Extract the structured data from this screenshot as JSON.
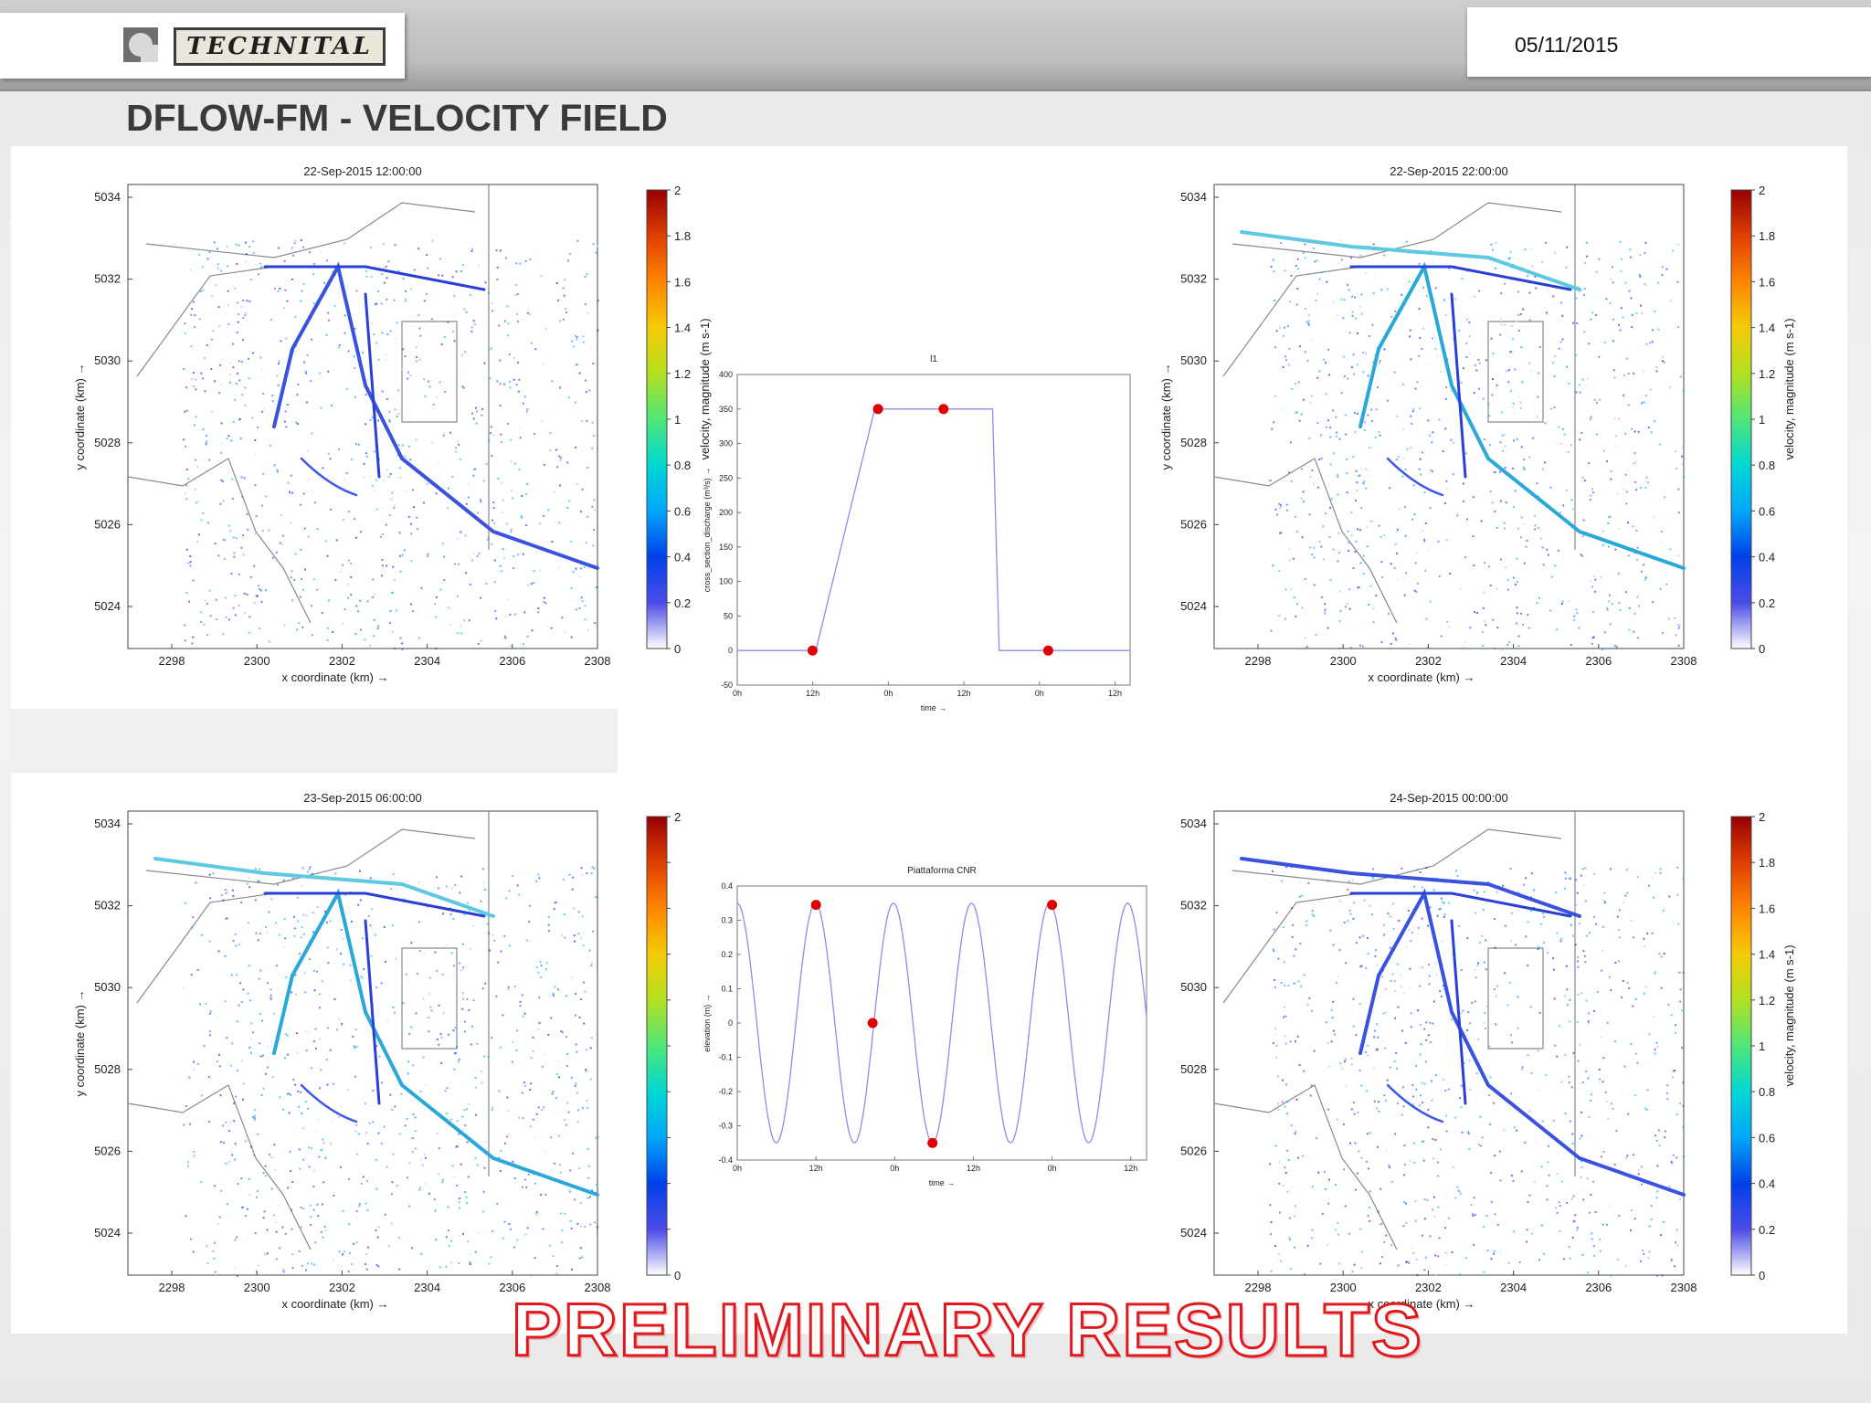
{
  "header": {
    "logo_text": "TECHNITAL",
    "date": "05/11/2015",
    "title": "DFLOW-FM - VELOCITY FIELD"
  },
  "watermark": "PRELIMINARY RESULTS",
  "colors": {
    "accent_red": "#e0191f",
    "flow_blue": "#2a3fd6",
    "series": "#8c8cf0",
    "marker": "#e00000"
  },
  "chart_data": [
    {
      "type": "heatmap",
      "title": "22-Sep-2015 12:00:00",
      "xlabel": "x coordinate (km) →",
      "ylabel": "y coordinate (km) →",
      "xticks": [
        "2298",
        "2300",
        "2302",
        "2304",
        "2306",
        "2308"
      ],
      "yticks": [
        "5034",
        "5032",
        "5030",
        "5028",
        "5026",
        "5024"
      ],
      "colorbar_label": "velocity, magnitude (m s-1)",
      "colorbar_ticks": [
        "2",
        "1.8",
        "1.6",
        "1.4",
        "1.2",
        "1",
        "0.8",
        "0.6",
        "0.4",
        "0.2",
        "0"
      ],
      "range": [
        0,
        2
      ]
    },
    {
      "type": "heatmap",
      "title": "22-Sep-2015 22:00:00",
      "xlabel": "x coordinate (km) →",
      "ylabel": "y coordinate (km) →",
      "xticks": [
        "2298",
        "2300",
        "2302",
        "2304",
        "2306",
        "2308"
      ],
      "yticks": [
        "5034",
        "5032",
        "5030",
        "5028",
        "5026",
        "5024"
      ],
      "colorbar_label": "velocity, magnitude (m s-1)",
      "colorbar_ticks": [
        "2",
        "1.8",
        "1.6",
        "1.4",
        "1.2",
        "1",
        "0.8",
        "0.6",
        "0.4",
        "0.2",
        "0"
      ],
      "range": [
        0,
        2
      ]
    },
    {
      "type": "heatmap",
      "title": "23-Sep-2015 06:00:00",
      "xlabel": "x coordinate (km) →",
      "ylabel": "y coordinate (km) →",
      "xticks": [
        "2298",
        "2300",
        "2302",
        "2304",
        "2306",
        "2308"
      ],
      "yticks": [
        "5034",
        "5032",
        "5030",
        "5028",
        "5026",
        "5024"
      ],
      "colorbar_label": "",
      "colorbar_ticks": [
        "2",
        "",
        "",
        "",
        "",
        "",
        "",
        "",
        "",
        "",
        "0"
      ],
      "range": [
        0,
        2
      ]
    },
    {
      "type": "heatmap",
      "title": "24-Sep-2015 00:00:00",
      "xlabel": "x coordinate (km) →",
      "ylabel": "",
      "xticks": [
        "2298",
        "2300",
        "2302",
        "2304",
        "2306",
        "2308"
      ],
      "yticks": [
        "5034",
        "5032",
        "5030",
        "5028",
        "5026",
        "5024"
      ],
      "colorbar_label": "velocity, magnitude (m s-1)",
      "colorbar_ticks": [
        "2",
        "1.8",
        "1.6",
        "1.4",
        "1.2",
        "1",
        "0.8",
        "0.6",
        "0.4",
        "0.2",
        "0"
      ],
      "range": [
        0,
        2
      ]
    },
    {
      "type": "line",
      "title": "l1",
      "xlabel": "time →",
      "ylabel": "cross_section_discharge (m³/s) →",
      "xticks": [
        "0h",
        "12h",
        "0h",
        "12h",
        "0h",
        "12h"
      ],
      "ylim": [
        -50,
        400
      ],
      "yticks": [
        -50,
        0,
        50,
        100,
        150,
        200,
        250,
        300,
        350,
        400
      ],
      "xlim": [
        0,
        60
      ],
      "series": [
        {
          "x": [
            0,
            11,
            12,
            21,
            30,
            39,
            40,
            60
          ],
          "y": [
            0,
            0,
            0,
            350,
            350,
            350,
            0,
            0
          ]
        }
      ],
      "markers": [
        {
          "x": 11.5,
          "y": 0
        },
        {
          "x": 21.5,
          "y": 350
        },
        {
          "x": 31.5,
          "y": 350
        },
        {
          "x": 47.5,
          "y": 0
        }
      ]
    },
    {
      "type": "line",
      "title": "Piattaforma CNR",
      "xlabel": "time →",
      "ylabel": "elevation (m) →",
      "xticks": [
        "0h",
        "12h",
        "0h",
        "12h",
        "0h",
        "12h"
      ],
      "ylim": [
        -0.4,
        0.4
      ],
      "yticks": [
        -0.4,
        -0.3,
        -0.2,
        -0.1,
        0,
        0.1,
        0.2,
        0.3,
        0.4
      ],
      "xlim": [
        0,
        65
      ],
      "series": [
        {
          "amplitude": 0.35,
          "period_h": 12.4,
          "phase_h": 0
        }
      ],
      "markers": [
        {
          "x": 12.5,
          "y": 0.345
        },
        {
          "x": 21.5,
          "y": 0
        },
        {
          "x": 31,
          "y": -0.35
        },
        {
          "x": 50,
          "y": 0.345
        }
      ]
    }
  ]
}
